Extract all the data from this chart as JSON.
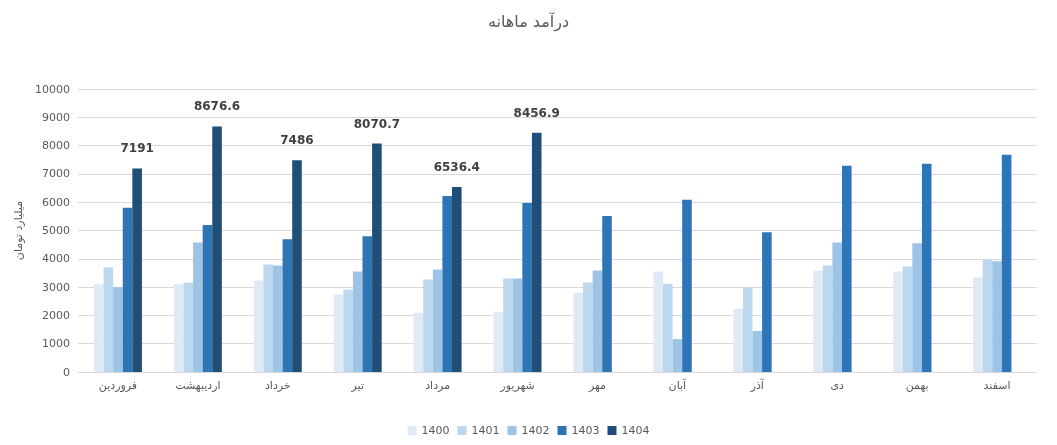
{
  "chart_data": {
    "type": "bar",
    "title": "درآمد ماهانه",
    "ylabel": "میلیارد تومان",
    "categories": [
      "فروردین",
      "اردیبهشت",
      "خرداد",
      "تیر",
      "مرداد",
      "شهریور",
      "مهر",
      "آبان",
      "آذر",
      "دی",
      "بهمن",
      "اسفند"
    ],
    "series": [
      {
        "name": "1400",
        "color": "#deebf7",
        "values": [
          3100,
          3100,
          3230,
          2730,
          2090,
          2130,
          2800,
          3550,
          2230,
          3590,
          3550,
          3340
        ]
      },
      {
        "name": "1401",
        "color": "#bdd7ee",
        "values": [
          3700,
          3150,
          3800,
          2910,
          3270,
          3300,
          3160,
          3120,
          2990,
          3760,
          3730,
          3980
        ]
      },
      {
        "name": "1402",
        "color": "#9dc3e6",
        "values": [
          3000,
          4580,
          3760,
          3550,
          3620,
          3300,
          3590,
          1160,
          1450,
          4580,
          4550,
          3910
        ]
      },
      {
        "name": "1403",
        "color": "#2e75b6",
        "values": [
          5800,
          5190,
          4690,
          4800,
          6220,
          5970,
          5510,
          6090,
          4940,
          7290,
          7360,
          7680
        ]
      },
      {
        "name": "1404",
        "color": "#1f4e79",
        "values": [
          7191,
          8676.6,
          7486,
          8070.7,
          6536.4,
          8456.9,
          null,
          null,
          null,
          null,
          null,
          null
        ],
        "value_labels": [
          "7191",
          "8676.6",
          "7486",
          "8070.7",
          "6536.4",
          "8456.9",
          null,
          null,
          null,
          null,
          null,
          null
        ]
      }
    ],
    "ylim": [
      0,
      10000
    ],
    "yticks": [
      0,
      1000,
      2000,
      3000,
      4000,
      5000,
      6000,
      7000,
      8000,
      9000,
      10000
    ],
    "grid": "y",
    "legend": "bottom"
  }
}
